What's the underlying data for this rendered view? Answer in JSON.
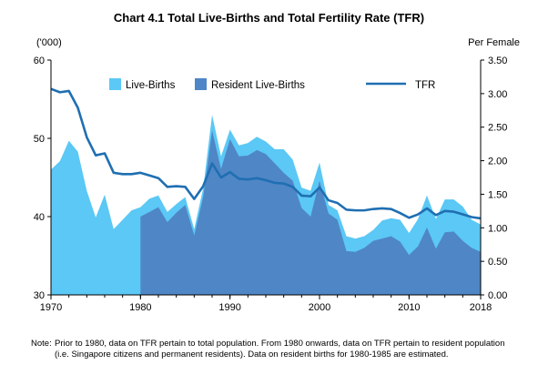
{
  "chart_data": {
    "type": "area",
    "title": "Chart 4.1  Total Live-Births and Total Fertility Rate (TFR)",
    "left_unit": "('000)",
    "right_unit": "Per Female",
    "xlim": [
      1970,
      2018
    ],
    "ylim_left": [
      30,
      60
    ],
    "ylim_right": [
      0,
      3.5
    ],
    "x_ticks": [
      "1970",
      "1980",
      "1990",
      "2000",
      "2010",
      "2018"
    ],
    "y_left_ticks": [
      "30",
      "40",
      "50",
      "60"
    ],
    "y_right_ticks": [
      "0.00",
      "0.50",
      "1.00",
      "1.50",
      "2.00",
      "2.50",
      "3.00",
      "3.50"
    ],
    "legend": [
      "Live-Births",
      "Resident Live-Births",
      "TFR"
    ],
    "colors": {
      "live_births": "#5bc8f5",
      "resident_live_births": "#4f86c6",
      "tfr": "#1f6fb2"
    },
    "series": [
      {
        "name": "Live-Births",
        "axis": "left",
        "x": [
          1970,
          1971,
          1972,
          1973,
          1974,
          1975,
          1976,
          1977,
          1978,
          1979,
          1980,
          1981,
          1982,
          1983,
          1984,
          1985,
          1986,
          1987,
          1988,
          1989,
          1990,
          1991,
          1992,
          1993,
          1994,
          1995,
          1996,
          1997,
          1998,
          1999,
          2000,
          2001,
          2002,
          2003,
          2004,
          2005,
          2006,
          2007,
          2008,
          2009,
          2010,
          2011,
          2012,
          2013,
          2014,
          2015,
          2016,
          2017,
          2018
        ],
        "values": [
          46.0,
          47.1,
          49.7,
          48.3,
          43.3,
          39.9,
          42.8,
          38.4,
          39.6,
          40.8,
          41.2,
          42.3,
          42.7,
          40.6,
          41.6,
          42.5,
          38.4,
          43.6,
          53.0,
          47.7,
          51.1,
          49.1,
          49.4,
          50.2,
          49.6,
          48.6,
          48.6,
          47.3,
          43.7,
          43.3,
          46.9,
          41.5,
          40.8,
          37.5,
          37.2,
          37.5,
          38.3,
          39.5,
          39.8,
          39.6,
          37.9,
          39.7,
          42.7,
          39.7,
          42.2,
          42.2,
          41.3,
          39.6,
          39.0
        ]
      },
      {
        "name": "Resident Live-Births",
        "axis": "left",
        "x": [
          1980,
          1981,
          1982,
          1983,
          1984,
          1985,
          1986,
          1987,
          1988,
          1989,
          1990,
          1991,
          1992,
          1993,
          1994,
          1995,
          1996,
          1997,
          1998,
          1999,
          2000,
          2001,
          2002,
          2003,
          2004,
          2005,
          2006,
          2007,
          2008,
          2009,
          2010,
          2011,
          2012,
          2013,
          2014,
          2015,
          2016,
          2017,
          2018
        ],
        "values": [
          40.0,
          40.6,
          41.2,
          39.3,
          40.5,
          41.5,
          37.6,
          42.5,
          51.0,
          46.1,
          49.9,
          47.7,
          47.8,
          48.5,
          48.0,
          46.8,
          45.6,
          44.6,
          41.1,
          40.0,
          44.6,
          40.4,
          39.6,
          35.6,
          35.5,
          36.0,
          36.9,
          37.2,
          37.5,
          36.8,
          35.1,
          36.2,
          38.6,
          35.9,
          38.0,
          38.1,
          36.9,
          36.0,
          35.5
        ]
      },
      {
        "name": "TFR",
        "axis": "right",
        "x": [
          1970,
          1971,
          1972,
          1973,
          1974,
          1975,
          1976,
          1977,
          1978,
          1979,
          1980,
          1981,
          1982,
          1983,
          1984,
          1985,
          1986,
          1987,
          1988,
          1989,
          1990,
          1991,
          1992,
          1993,
          1994,
          1995,
          1996,
          1997,
          1998,
          1999,
          2000,
          2001,
          2002,
          2003,
          2004,
          2005,
          2006,
          2007,
          2008,
          2009,
          2010,
          2011,
          2012,
          2013,
          2014,
          2015,
          2016,
          2017,
          2018
        ],
        "values": [
          3.07,
          3.02,
          3.04,
          2.79,
          2.35,
          2.08,
          2.11,
          1.82,
          1.8,
          1.8,
          1.82,
          1.78,
          1.74,
          1.61,
          1.62,
          1.61,
          1.43,
          1.62,
          1.96,
          1.75,
          1.83,
          1.73,
          1.72,
          1.74,
          1.71,
          1.67,
          1.66,
          1.61,
          1.48,
          1.47,
          1.6,
          1.41,
          1.37,
          1.27,
          1.26,
          1.26,
          1.28,
          1.29,
          1.28,
          1.22,
          1.15,
          1.2,
          1.29,
          1.19,
          1.25,
          1.24,
          1.2,
          1.16,
          1.14
        ]
      }
    ]
  },
  "note": {
    "label": "Note:",
    "text": "Prior to 1980, data on TFR pertain to total population. From 1980 onwards, data on TFR pertain to resident population (i.e. Singapore citizens and permanent residents). Data on resident births for 1980-1985 are estimated."
  }
}
